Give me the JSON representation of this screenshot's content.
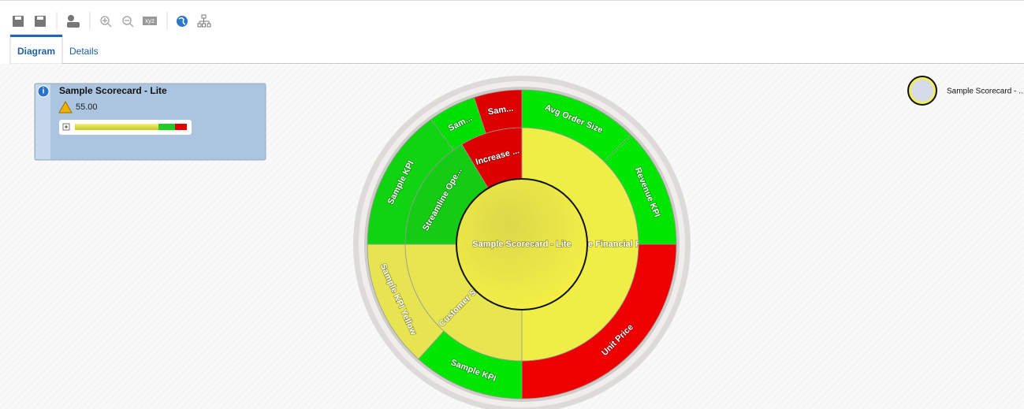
{
  "toolbar": {
    "text_icon": "xyz"
  },
  "tabs": [
    "Diagram",
    "Details"
  ],
  "card": {
    "title": "Sample Scorecard - Lite",
    "score": "55.00"
  },
  "sunburst": {
    "center": "Sample Scorecard - Lite",
    "middle": [
      {
        "label": "Improve Financial Results",
        "color": "#eeee46"
      },
      {
        "label": "Enhance Customer Satisfact...",
        "color": "#e8e650"
      },
      {
        "label": "Streamline Ope...",
        "color": "#14cc14"
      },
      {
        "label": "Increase ...",
        "color": "#dd0000"
      }
    ],
    "outer": [
      {
        "label": "Avg Order Size",
        "color": "#00e600"
      },
      {
        "label": "Revenue KPI",
        "color": "#00e600"
      },
      {
        "label": "Unit Price",
        "color": "#ee0000"
      },
      {
        "label": "Sample KPI",
        "color": "#00e600"
      },
      {
        "label": "Sample KPI Yellow",
        "color": "#e6e450"
      },
      {
        "label": "Sample KPI",
        "color": "#10d410"
      },
      {
        "label": "Sam...",
        "color": "#00e000"
      },
      {
        "label": "Sam...",
        "color": "#dd0000"
      }
    ]
  },
  "legend": {
    "label": "Sample Scorecard - ..."
  }
}
